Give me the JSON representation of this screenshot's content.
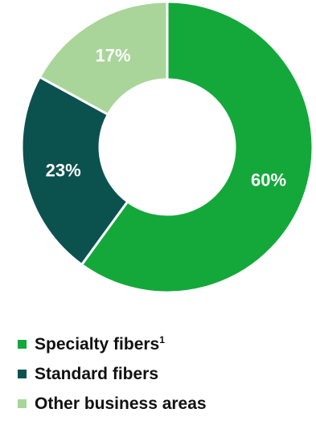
{
  "chart_data": {
    "type": "pie",
    "donut": true,
    "slices": [
      {
        "name": "Specialty fibers",
        "footnote": "1",
        "value": 60,
        "label": "60%",
        "color": "#14a83b"
      },
      {
        "name": "Standard fibers",
        "footnote": "",
        "value": 23,
        "label": "23%",
        "color": "#0b524f"
      },
      {
        "name": "Other business areas",
        "footnote": "",
        "value": 17,
        "label": "17%",
        "color": "#a9d59a"
      }
    ],
    "legend_position": "bottom-left"
  }
}
